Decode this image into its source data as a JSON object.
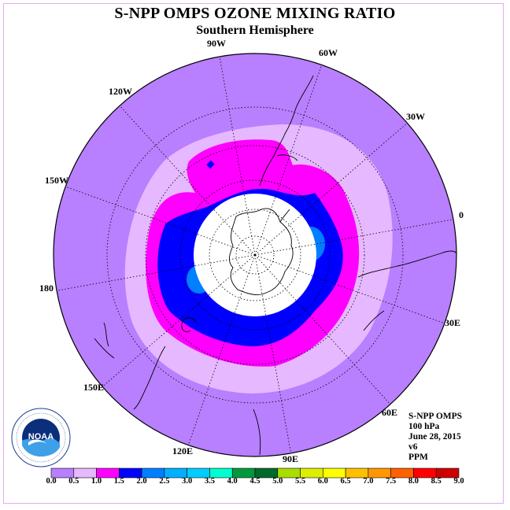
{
  "title": "S-NPP OMPS OZONE MIXING RATIO",
  "subtitle": "Southern Hemisphere",
  "longitude_labels": [
    {
      "text": "90W",
      "key": "90w"
    },
    {
      "text": "60W",
      "key": "60w"
    },
    {
      "text": "30W",
      "key": "30w"
    },
    {
      "text": "0",
      "key": "0"
    },
    {
      "text": "30E",
      "key": "30e"
    },
    {
      "text": "60E",
      "key": "60e"
    },
    {
      "text": "90E",
      "key": "90e"
    },
    {
      "text": "120E",
      "key": "120e"
    },
    {
      "text": "150E",
      "key": "150e"
    },
    {
      "text": "180",
      "key": "180"
    },
    {
      "text": "150W",
      "key": "150w"
    },
    {
      "text": "120W",
      "key": "120w"
    }
  ],
  "info": {
    "instrument": "S-NPP OMPS",
    "level": "100 hPa",
    "date": "June 28, 2015",
    "version": "v6",
    "units": "PPM"
  },
  "logo": {
    "text": "NOAA",
    "icon": "noaa-logo"
  },
  "colorbar": {
    "ticks": [
      "0.0",
      "0.5",
      "1.0",
      "1.5",
      "2.0",
      "2.5",
      "3.0",
      "3.5",
      "4.0",
      "4.5",
      "5.0",
      "5.5",
      "6.0",
      "6.5",
      "7.0",
      "7.5",
      "8.0",
      "8.5",
      "9.0"
    ],
    "colors": [
      "#b87fff",
      "#e6b8ff",
      "#ff00ff",
      "#0000ff",
      "#0080ff",
      "#00b0ff",
      "#00ccff",
      "#00ffd0",
      "#009a3c",
      "#006a2a",
      "#aadd00",
      "#ddee00",
      "#ffff00",
      "#ffc000",
      "#ff9800",
      "#ff6000",
      "#ff0000",
      "#cc0000"
    ]
  },
  "map_colors": {
    "background": "#b87fff",
    "band_0_5": "#e6b8ff",
    "band_1_0": "#ff00ff",
    "band_1_5": "#0000ff",
    "band_2_0": "#0080ff",
    "no_data": "#ffffff"
  }
}
